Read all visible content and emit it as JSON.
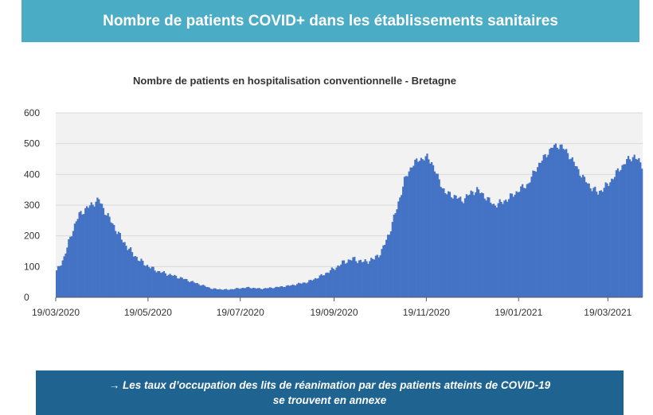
{
  "header": {
    "title": "Nombre de patients COVID+ dans les établissements sanitaires"
  },
  "footer": {
    "line1": "→ Les taux d’occupation des lits de réanimation par des patients atteints de COVID-19",
    "line2": "se trouvent en annexe"
  },
  "colors": {
    "header_bg": "#4bacc6",
    "footer_bg": "#1f6391",
    "bars": "#4472c4",
    "plot_bg": "#f2f2f2"
  },
  "chart_data": {
    "type": "bar",
    "title": "Nombre de patients en hospitalisation conventionnelle - Bretagne",
    "xlabel": "",
    "ylabel": "",
    "ylim": [
      0,
      600
    ],
    "yticks": [
      0,
      100,
      200,
      300,
      400,
      500,
      600
    ],
    "xticks": [
      "19/03/2020",
      "19/05/2020",
      "19/07/2020",
      "19/09/2020",
      "19/11/2020",
      "19/01/2021",
      "19/03/2021"
    ],
    "grid": true,
    "start_date": "19/03/2020",
    "end_date": "10/04/2021",
    "series": [
      {
        "values_note": "daily values, one bar per day from start_date",
        "keypoints": [
          [
            "19/03/2020",
            85
          ],
          [
            "24/03/2020",
            130
          ],
          [
            "29/03/2020",
            210
          ],
          [
            "03/04/2020",
            270
          ],
          [
            "08/04/2020",
            290
          ],
          [
            "12/04/2020",
            305
          ],
          [
            "16/04/2020",
            318
          ],
          [
            "20/04/2020",
            280
          ],
          [
            "25/04/2020",
            240
          ],
          [
            "01/05/2020",
            190
          ],
          [
            "07/05/2020",
            150
          ],
          [
            "13/05/2020",
            120
          ],
          [
            "19/05/2020",
            100
          ],
          [
            "25/05/2020",
            85
          ],
          [
            "01/06/2020",
            75
          ],
          [
            "10/06/2020",
            62
          ],
          [
            "20/06/2020",
            45
          ],
          [
            "30/06/2020",
            28
          ],
          [
            "10/07/2020",
            25
          ],
          [
            "19/07/2020",
            30
          ],
          [
            "24/07/2020",
            32
          ],
          [
            "01/08/2020",
            28
          ],
          [
            "10/08/2020",
            32
          ],
          [
            "20/08/2020",
            38
          ],
          [
            "01/09/2020",
            50
          ],
          [
            "10/09/2020",
            70
          ],
          [
            "19/09/2020",
            95
          ],
          [
            "25/09/2020",
            115
          ],
          [
            "01/10/2020",
            125
          ],
          [
            "08/10/2020",
            115
          ],
          [
            "15/10/2020",
            125
          ],
          [
            "20/10/2020",
            150
          ],
          [
            "25/10/2020",
            210
          ],
          [
            "30/10/2020",
            290
          ],
          [
            "04/11/2020",
            380
          ],
          [
            "09/11/2020",
            430
          ],
          [
            "14/11/2020",
            450
          ],
          [
            "19/11/2020",
            455
          ],
          [
            "22/11/2020",
            440
          ],
          [
            "26/11/2020",
            390
          ],
          [
            "01/12/2020",
            340
          ],
          [
            "07/12/2020",
            330
          ],
          [
            "12/12/2020",
            315
          ],
          [
            "18/12/2020",
            340
          ],
          [
            "22/12/2020",
            350
          ],
          [
            "27/12/2020",
            330
          ],
          [
            "02/01/2021",
            300
          ],
          [
            "08/01/2021",
            310
          ],
          [
            "14/01/2021",
            330
          ],
          [
            "19/01/2021",
            350
          ],
          [
            "25/01/2021",
            370
          ],
          [
            "30/01/2021",
            420
          ],
          [
            "05/02/2021",
            460
          ],
          [
            "10/02/2021",
            490
          ],
          [
            "15/02/2021",
            495
          ],
          [
            "20/02/2021",
            470
          ],
          [
            "25/02/2021",
            430
          ],
          [
            "02/03/2021",
            390
          ],
          [
            "07/03/2021",
            360
          ],
          [
            "12/03/2021",
            340
          ],
          [
            "19/03/2021",
            370
          ],
          [
            "25/03/2021",
            410
          ],
          [
            "31/03/2021",
            445
          ],
          [
            "05/04/2021",
            460
          ],
          [
            "10/04/2021",
            430
          ]
        ]
      }
    ]
  }
}
